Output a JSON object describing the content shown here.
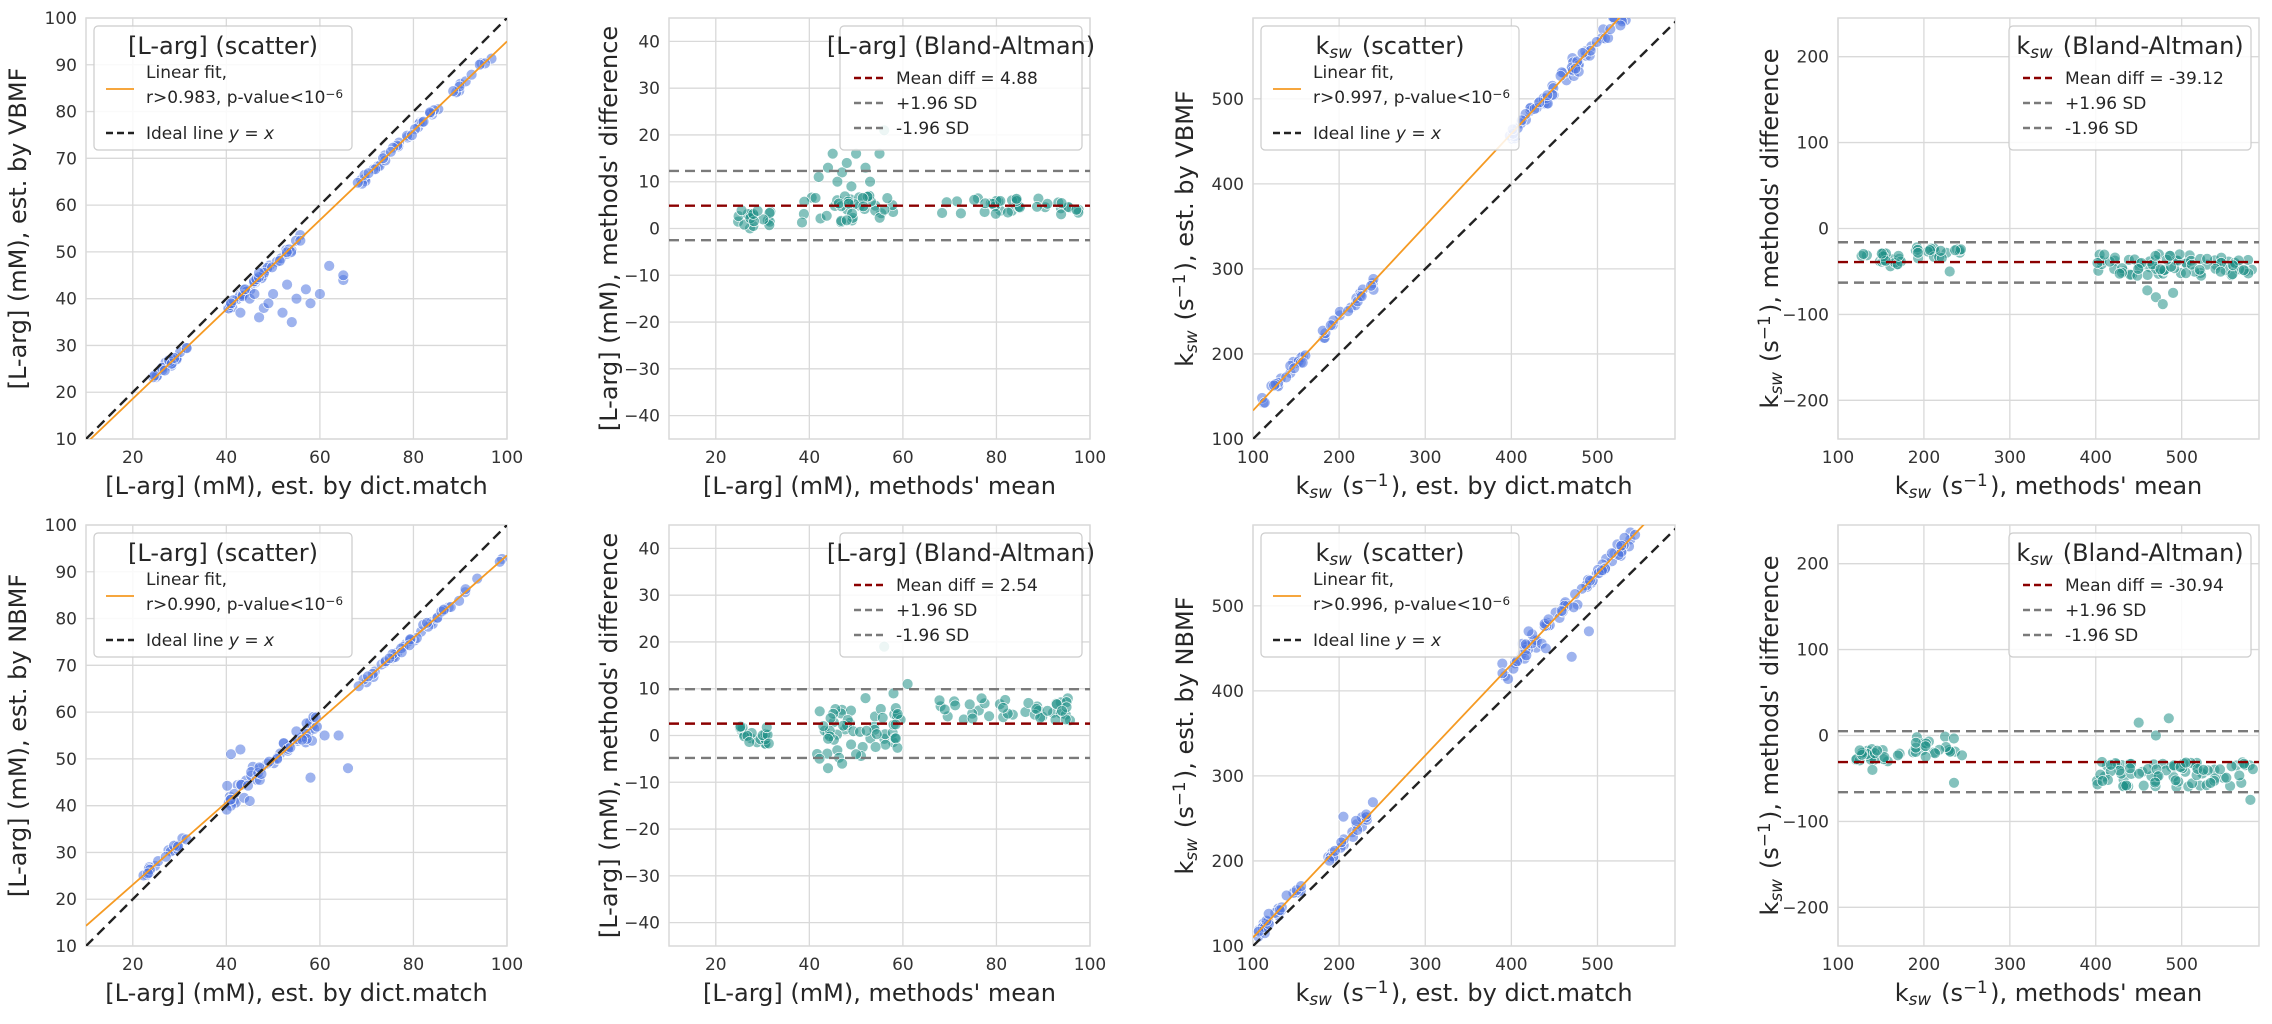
{
  "figure_title": "",
  "colors": {
    "scatter_point": "#4f74e0",
    "ba_point": "#1f8f86",
    "fit_line": "#f59a23",
    "ideal_line": "#222222",
    "mean_line": "#8b0000",
    "sd_line": "#7a7a7a",
    "grid": "#d9d9d9"
  },
  "chart_data": [
    {
      "type": "scatter",
      "title": "[L-arg] (scatter)",
      "xlabel": "[L-arg] (mM), est. by dict.match",
      "ylabel": "[L-arg] (mM), est. by VBMF",
      "xlim": [
        10,
        100
      ],
      "ylim": [
        10,
        100
      ],
      "xticks": [
        20,
        40,
        60,
        80,
        100
      ],
      "yticks": [
        10,
        20,
        30,
        40,
        50,
        60,
        70,
        80,
        90,
        100
      ],
      "legend": {
        "location": "top-left",
        "fit_label": "Linear fit,",
        "fit_label2": "r>0.983, p-value<10^-6",
        "ideal_label": "Ideal line y = x"
      },
      "fit": {
        "slope": 0.955,
        "intercept": -0.5
      },
      "clusters": [
        {
          "x": [
            22,
            32
          ],
          "noise": 0.8,
          "n": 22
        },
        {
          "x": [
            40,
            56
          ],
          "noise": 1.0,
          "n": 40
        },
        {
          "x": [
            68,
            99
          ],
          "noise": 0.9,
          "n": 45
        }
      ],
      "outliers": [
        [
          41,
          39
        ],
        [
          43,
          37
        ],
        [
          45,
          40
        ],
        [
          47,
          36
        ],
        [
          48,
          38
        ],
        [
          50,
          41
        ],
        [
          52,
          37
        ],
        [
          53,
          43
        ],
        [
          55,
          40
        ],
        [
          57,
          42
        ],
        [
          58,
          39
        ],
        [
          44,
          42
        ],
        [
          46,
          41
        ],
        [
          49,
          39
        ],
        [
          62,
          47
        ],
        [
          65,
          44
        ],
        [
          65,
          45
        ],
        [
          54,
          35
        ],
        [
          60,
          41
        ]
      ]
    },
    {
      "type": "scatter",
      "title": "[L-arg] (Bland-Altman)",
      "xlabel": "[L-arg] (mM), methods' mean",
      "ylabel": "[L-arg] (mM), methods' difference",
      "xlim": [
        10,
        100
      ],
      "ylim": [
        -45,
        45
      ],
      "xticks": [
        20,
        40,
        60,
        80,
        100
      ],
      "yticks": [
        -40,
        -30,
        -20,
        -10,
        0,
        10,
        20,
        30,
        40
      ],
      "legend": {
        "location": "top-right",
        "mean_label": "Mean diff = 4.88",
        "plus_label": "+1.96 SD",
        "minus_label": "-1.96 SD"
      },
      "mean_diff": 4.88,
      "upper_sd": 12.3,
      "lower_sd": -2.5,
      "clusters": [
        {
          "x": [
            24,
            32
          ],
          "y": [
            0,
            4
          ],
          "n": 20
        },
        {
          "x": [
            38,
            58
          ],
          "y": [
            1,
            7
          ],
          "n": 40
        },
        {
          "x": [
            67,
            98
          ],
          "y": [
            3,
            6.5
          ],
          "n": 38
        }
      ],
      "outliers": [
        [
          44,
          13
        ],
        [
          45,
          16
        ],
        [
          47,
          12
        ],
        [
          48,
          14
        ],
        [
          50,
          16
        ],
        [
          52,
          13
        ],
        [
          55,
          16
        ],
        [
          56,
          21
        ],
        [
          46,
          10
        ],
        [
          49,
          9
        ],
        [
          42,
          11
        ],
        [
          53,
          10
        ]
      ]
    },
    {
      "type": "scatter",
      "title": "k_sw (scatter)",
      "xlabel": "k_sw (s^-1), est. by dict.match",
      "ylabel": "k_sw (s^-1), est. by VBMF",
      "xlim": [
        100,
        590
      ],
      "ylim": [
        100,
        595
      ],
      "xticks": [
        100,
        200,
        300,
        400,
        500
      ],
      "yticks": [
        100,
        200,
        300,
        400,
        500
      ],
      "legend": {
        "location": "top-left",
        "fit_label": "Linear fit,",
        "fit_label2": "r>0.997, p-value<10^-6",
        "ideal_label": "Ideal line y = x"
      },
      "fit": {
        "slope": 1.085,
        "intercept": 25
      },
      "clusters": [
        {
          "x": [
            108,
            165
          ],
          "noise": 6,
          "n": 22
        },
        {
          "x": [
            180,
            240
          ],
          "noise": 8,
          "n": 22
        },
        {
          "x": [
            395,
            545
          ],
          "noise": 12,
          "n": 75
        }
      ],
      "outliers": []
    },
    {
      "type": "scatter",
      "title": "k_sw (Bland-Altman)",
      "xlabel": "k_sw (s^-1), methods' mean",
      "ylabel": "k_sw (s^-1), methods' difference",
      "xlim": [
        100,
        590
      ],
      "ylim": [
        -245,
        245
      ],
      "xticks": [
        100,
        200,
        300,
        400,
        500
      ],
      "yticks": [
        -200,
        -100,
        0,
        100,
        200
      ],
      "legend": {
        "location": "top-right",
        "mean_label": "Mean diff = -39.12",
        "plus_label": "+1.96 SD",
        "minus_label": "-1.96 SD"
      },
      "mean_diff": -39.12,
      "upper_sd": -16,
      "lower_sd": -63,
      "clusters": [
        {
          "x": [
            125,
            175
          ],
          "y": [
            -45,
            -28
          ],
          "n": 20
        },
        {
          "x": [
            190,
            245
          ],
          "y": [
            -35,
            -22
          ],
          "n": 20
        },
        {
          "x": [
            400,
            585
          ],
          "y": [
            -55,
            -30
          ],
          "n": 80
        }
      ],
      "outliers": [
        [
          470,
          -80
        ],
        [
          478,
          -88
        ],
        [
          460,
          -72
        ],
        [
          490,
          -75
        ],
        [
          230,
          -50
        ]
      ]
    },
    {
      "type": "scatter",
      "title": "[L-arg] (scatter)",
      "xlabel": "[L-arg] (mM), est. by dict.match",
      "ylabel": "[L-arg] (mM), est. by NBMF",
      "xlim": [
        10,
        100
      ],
      "ylim": [
        10,
        100
      ],
      "xticks": [
        20,
        40,
        60,
        80,
        100
      ],
      "yticks": [
        10,
        20,
        30,
        40,
        50,
        60,
        70,
        80,
        90,
        100
      ],
      "legend": {
        "location": "top-left",
        "fit_label": "Linear fit,",
        "fit_label2": "r>0.990, p-value<10^-6",
        "ideal_label": "Ideal line y = x"
      },
      "fit": {
        "slope": 0.88,
        "intercept": 5.5
      },
      "clusters": [
        {
          "x": [
            22,
            32
          ],
          "noise": 0.8,
          "n": 20
        },
        {
          "x": [
            40,
            60
          ],
          "noise": 3.0,
          "n": 55
        },
        {
          "x": [
            68,
            99
          ],
          "noise": 0.9,
          "n": 45
        }
      ],
      "outliers": [
        [
          41,
          51
        ],
        [
          43,
          52
        ],
        [
          61,
          55
        ],
        [
          64,
          55
        ],
        [
          66,
          48
        ],
        [
          45,
          41
        ],
        [
          58,
          46
        ]
      ]
    },
    {
      "type": "scatter",
      "title": "[L-arg] (Bland-Altman)",
      "xlabel": "[L-arg] (mM), methods' mean",
      "ylabel": "[L-arg] (mM), methods' difference",
      "xlim": [
        10,
        100
      ],
      "ylim": [
        -45,
        45
      ],
      "xticks": [
        20,
        40,
        60,
        80,
        100
      ],
      "yticks": [
        -40,
        -30,
        -20,
        -10,
        0,
        10,
        20,
        30,
        40
      ],
      "legend": {
        "location": "top-right",
        "mean_label": "Mean diff = 2.54",
        "plus_label": "+1.96 SD",
        "minus_label": "-1.96 SD"
      },
      "mean_diff": 2.54,
      "upper_sd": 9.9,
      "lower_sd": -4.8,
      "clusters": [
        {
          "x": [
            24,
            32
          ],
          "y": [
            -2,
            2
          ],
          "n": 20
        },
        {
          "x": [
            40,
            60
          ],
          "y": [
            -5,
            6
          ],
          "n": 55
        },
        {
          "x": [
            67,
            96
          ],
          "y": [
            3,
            8
          ],
          "n": 42
        }
      ],
      "outliers": [
        [
          56,
          19
        ],
        [
          61,
          11
        ],
        [
          58,
          9
        ],
        [
          44,
          -7
        ],
        [
          47,
          -6
        ],
        [
          52,
          8
        ],
        [
          50,
          -4
        ]
      ]
    },
    {
      "type": "scatter",
      "title": "k_sw (scatter)",
      "xlabel": "k_sw (s^-1), est. by dict.match",
      "ylabel": "k_sw (s^-1), est. by NBMF",
      "xlim": [
        100,
        590
      ],
      "ylim": [
        100,
        595
      ],
      "xticks": [
        100,
        200,
        300,
        400,
        500
      ],
      "yticks": [
        100,
        200,
        300,
        400,
        500
      ],
      "legend": {
        "location": "top-left",
        "fit_label": "Linear fit,",
        "fit_label2": "r>0.996, p-value<10^-6",
        "ideal_label": "Ideal line y = x"
      },
      "fit": {
        "slope": 1.07,
        "intercept": 3
      },
      "clusters": [
        {
          "x": [
            105,
            160
          ],
          "noise": 7,
          "n": 25
        },
        {
          "x": [
            180,
            240
          ],
          "noise": 9,
          "n": 25
        },
        {
          "x": [
            385,
            545
          ],
          "noise": 12,
          "n": 75
        }
      ],
      "outliers": [
        [
          205,
          252
        ],
        [
          420,
          470
        ],
        [
          440,
          450
        ],
        [
          490,
          470
        ],
        [
          470,
          440
        ]
      ]
    },
    {
      "type": "scatter",
      "title": "k_sw (Bland-Altman)",
      "xlabel": "k_sw (s^-1), methods' mean",
      "ylabel": "k_sw (s^-1), methods' difference",
      "xlim": [
        100,
        590
      ],
      "ylim": [
        -245,
        245
      ],
      "xticks": [
        100,
        200,
        300,
        400,
        500
      ],
      "yticks": [
        -200,
        -100,
        0,
        100,
        200
      ],
      "legend": {
        "location": "top-right",
        "mean_label": "Mean diff = -30.94",
        "plus_label": "+1.96 SD",
        "minus_label": "-1.96 SD"
      },
      "mean_diff": -30.94,
      "upper_sd": 5,
      "lower_sd": -66,
      "clusters": [
        {
          "x": [
            120,
            175
          ],
          "y": [
            -30,
            -10
          ],
          "n": 22
        },
        {
          "x": [
            185,
            245
          ],
          "y": [
            -25,
            0
          ],
          "n": 22
        },
        {
          "x": [
            400,
            585
          ],
          "y": [
            -60,
            -30
          ],
          "n": 80
        }
      ],
      "outliers": [
        [
          450,
          15
        ],
        [
          485,
          20
        ],
        [
          580,
          -75
        ],
        [
          235,
          -55
        ],
        [
          140,
          -40
        ],
        [
          470,
          0
        ]
      ]
    }
  ]
}
